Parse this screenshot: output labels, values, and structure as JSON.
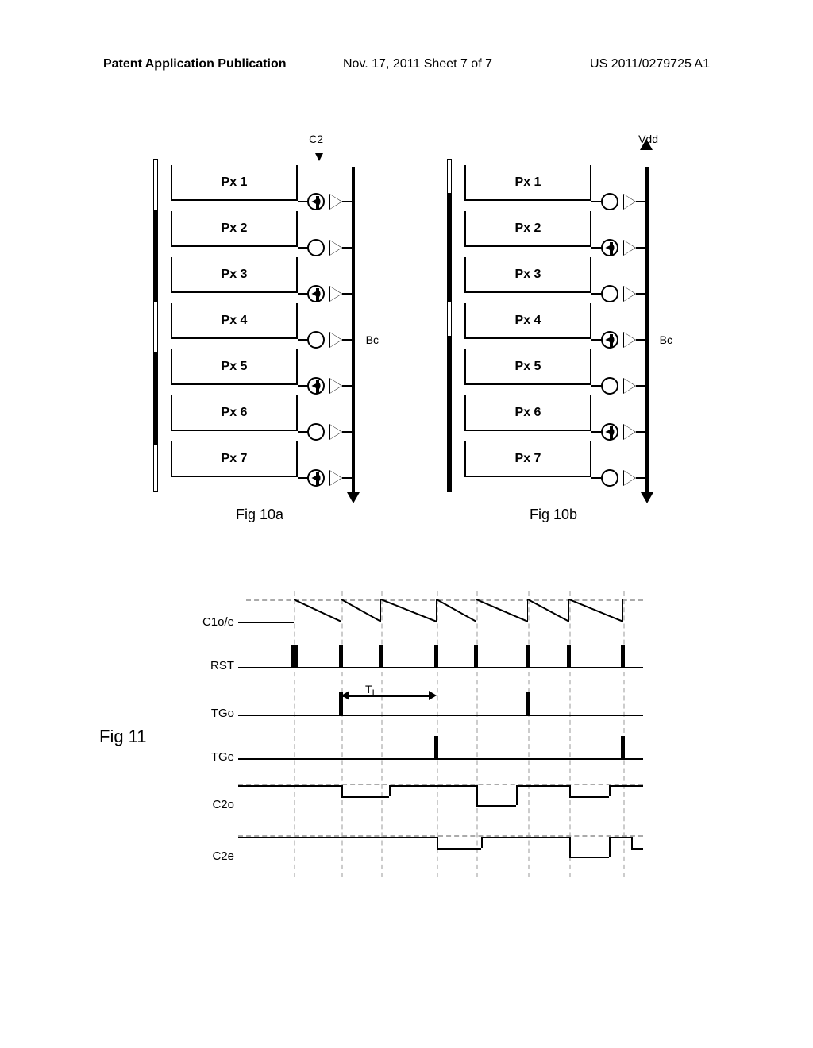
{
  "header": {
    "left": "Patent Application Publication",
    "center": "Nov. 17, 2011 Sheet 7 of 7",
    "right": "US 2011/0279725 A1"
  },
  "fig10a": {
    "caption": "Fig 10a",
    "pixels": [
      "Px 1",
      "Px 2",
      "Px 3",
      "Px 4",
      "Px 5",
      "Px 6",
      "Px 7"
    ],
    "top_label": "C2",
    "side_label": "Bc",
    "fill_pattern": [
      true,
      false,
      true,
      false,
      true,
      false,
      true
    ]
  },
  "fig10b": {
    "caption": "Fig 10b",
    "pixels": [
      "Px 1",
      "Px 2",
      "Px 3",
      "Px 4",
      "Px 5",
      "Px 6",
      "Px 7"
    ],
    "top_label": "Vdd",
    "side_label": "Bc",
    "fill_pattern": [
      false,
      true,
      false,
      true,
      false,
      true,
      false
    ]
  },
  "fig11": {
    "caption": "Fig 11",
    "signals": [
      "C1o/e",
      "RST",
      "TGo",
      "TGe",
      "C2o",
      "C2e"
    ],
    "tl_label": "T",
    "tl_sub": "L"
  }
}
